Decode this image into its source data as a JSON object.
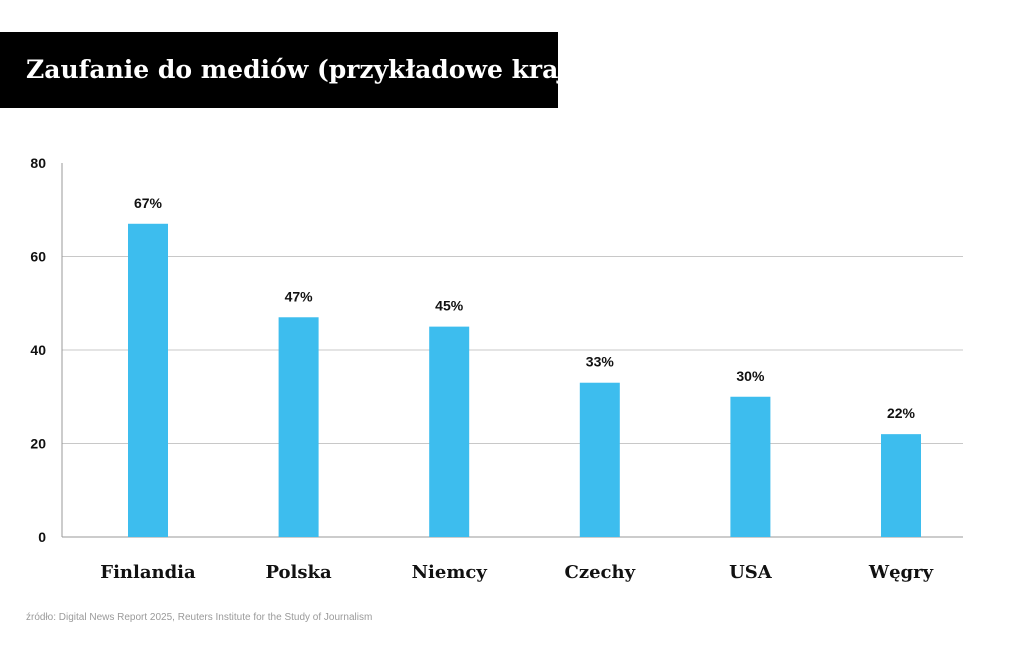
{
  "title": "Zaufanie do mediów (przykładowe kraje)",
  "source": "źródło: Digital News Report 2025, Reuters Institute for the Study of Journalism",
  "colors": {
    "bar": "#3dbdee",
    "grid": "#c8c8c8",
    "axis": "#999999",
    "title_bg": "#000000",
    "title_fg": "#ffffff"
  },
  "chart_data": {
    "type": "bar",
    "categories": [
      "Finlandia",
      "Polska",
      "Niemcy",
      "Czechy",
      "USA",
      "Węgry"
    ],
    "values": [
      67,
      47,
      45,
      33,
      30,
      22
    ],
    "data_labels": [
      "67%",
      "47%",
      "45%",
      "33%",
      "30%",
      "22%"
    ],
    "yticks": [
      "0",
      "20",
      "40",
      "60",
      "80"
    ],
    "ytick_values": [
      0,
      20,
      40,
      60,
      80
    ],
    "ylim": [
      0,
      80
    ],
    "grid": true,
    "legend": "none"
  }
}
